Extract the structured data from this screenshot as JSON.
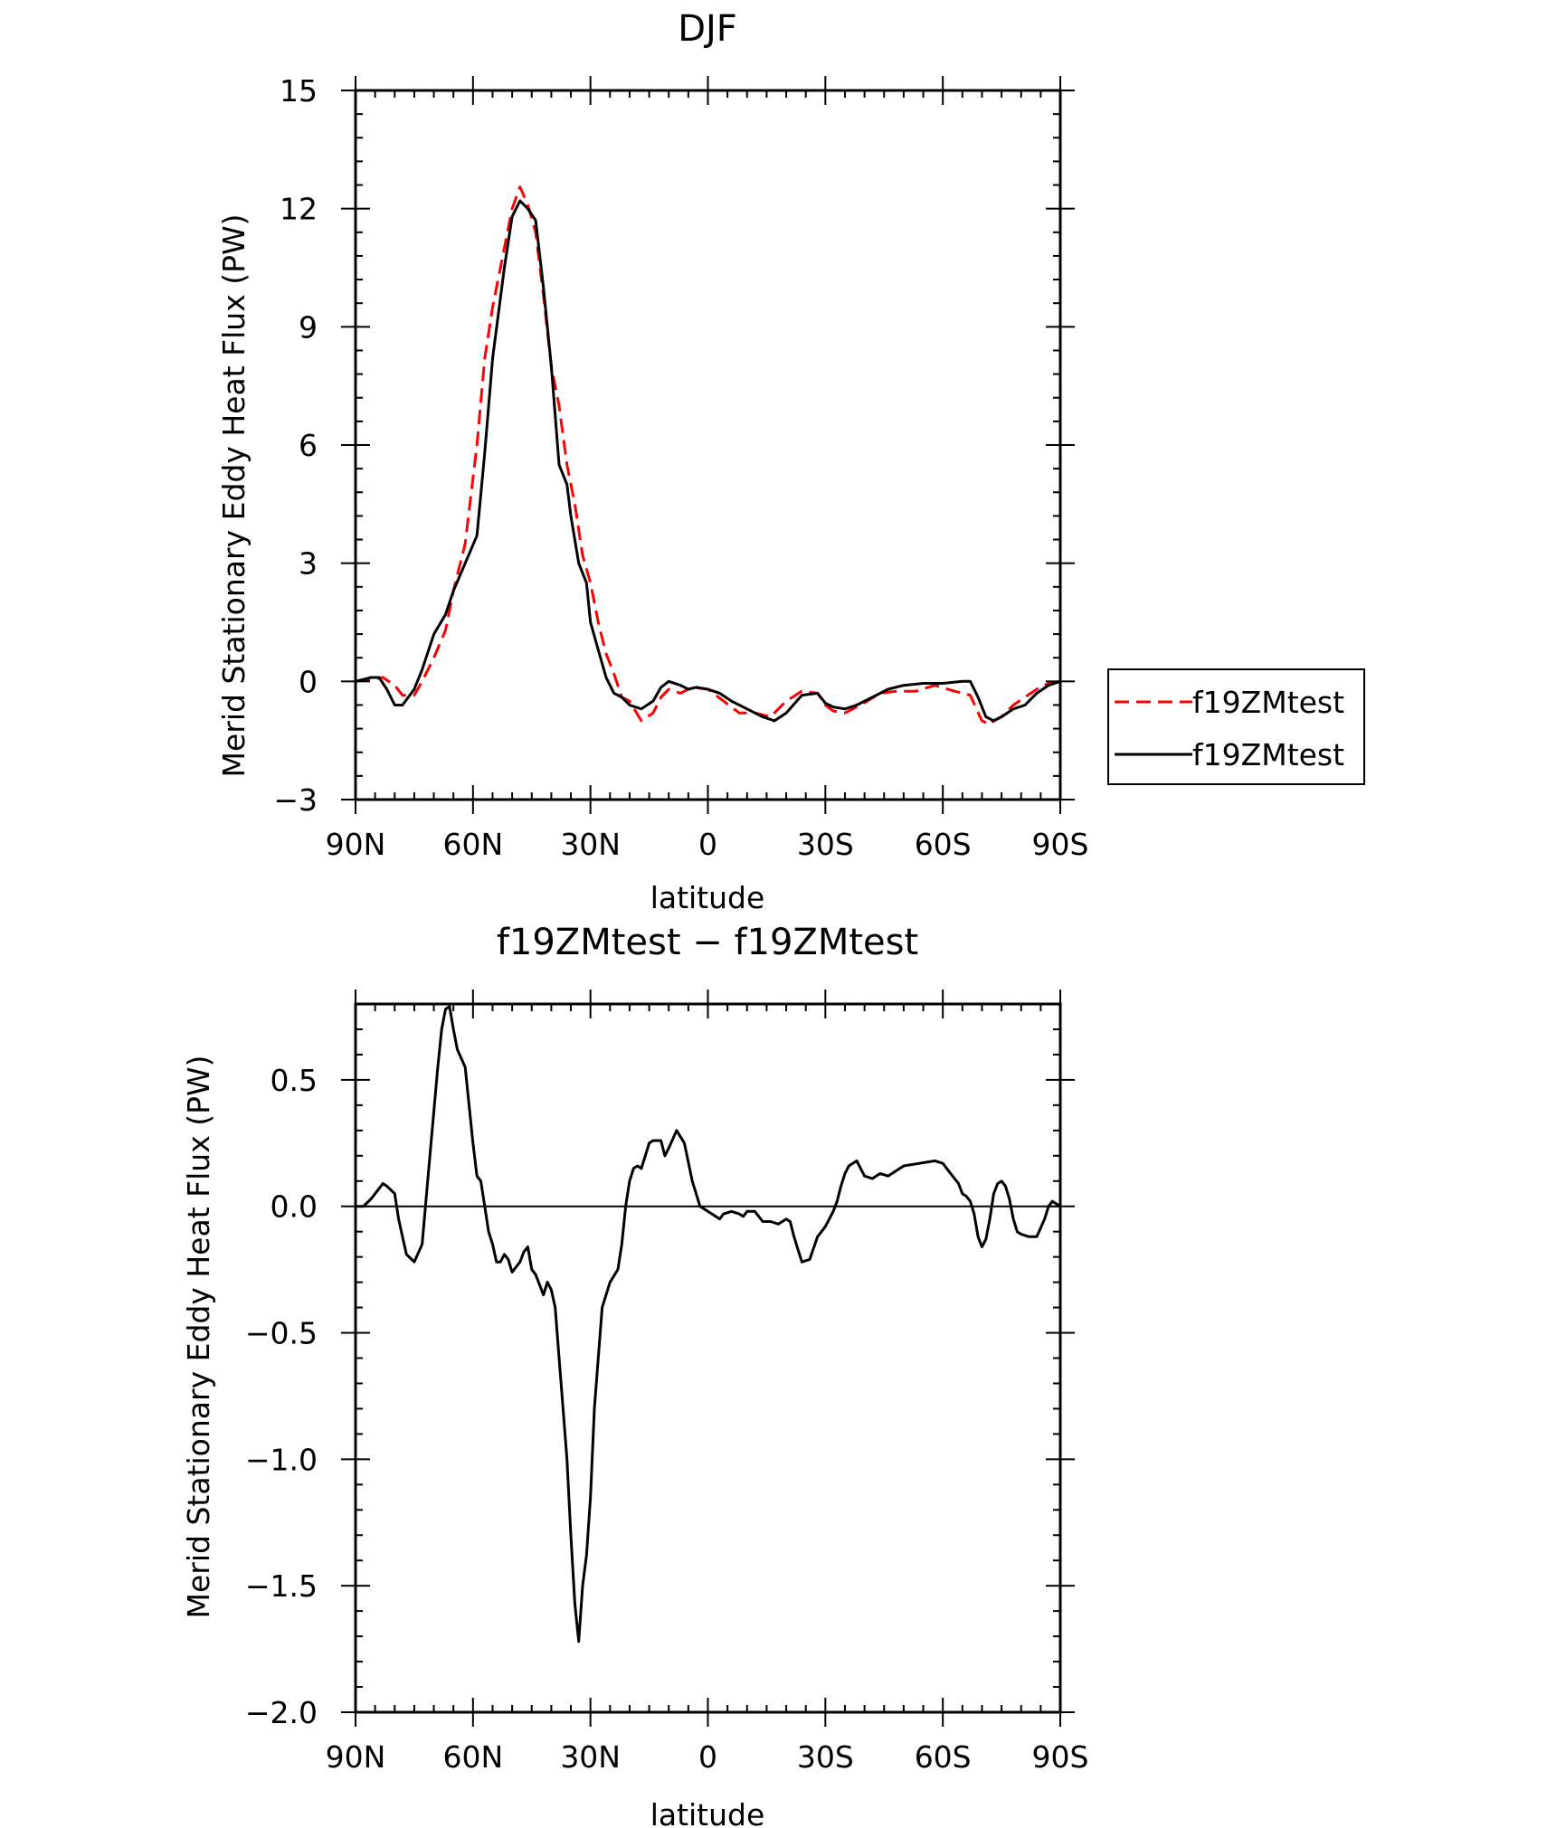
{
  "chart_data": [
    {
      "type": "line",
      "title": "DJF",
      "xlabel": "latitude",
      "ylabel": "Merid Stationary Eddy Heat Flux (PW)",
      "xlim": [
        90,
        -90
      ],
      "ylim": [
        -3,
        15
      ],
      "x_ticks": [
        90,
        60,
        30,
        0,
        -30,
        -60,
        -90
      ],
      "x_tick_labels": [
        "90N",
        "60N",
        "30N",
        "0",
        "30S",
        "60S",
        "90S"
      ],
      "y_ticks": [
        -3,
        0,
        3,
        6,
        9,
        12,
        15
      ],
      "y_tick_labels": [
        "−3",
        "0",
        "3",
        "6",
        "9",
        "12",
        "15"
      ],
      "legend": "right",
      "series": [
        {
          "name": "f19ZMtest",
          "color": "#ff0000",
          "dash": "dashed",
          "x": [
            90,
            86,
            83,
            80,
            78,
            75,
            73,
            70,
            67,
            65,
            62,
            59,
            57,
            55,
            52,
            50,
            48,
            46,
            44,
            42,
            40,
            38,
            36,
            34,
            32,
            30,
            28,
            26,
            24,
            22,
            20,
            17,
            14,
            12,
            10,
            7,
            4,
            0,
            -4,
            -8,
            -12,
            -16,
            -20,
            -24,
            -28,
            -30,
            -32,
            -35,
            -39,
            -44,
            -48,
            -53,
            -58,
            -63,
            -67,
            -70,
            -72,
            -73,
            -75,
            -78,
            -81,
            -84,
            -87,
            -90
          ],
          "y": [
            0,
            0.05,
            0.1,
            -0.1,
            -0.35,
            -0.35,
            0,
            0.6,
            1.3,
            2.3,
            3.5,
            6.0,
            8.2,
            9.5,
            11.0,
            12.0,
            12.55,
            12.1,
            11.4,
            9.8,
            8.0,
            7.0,
            5.5,
            4.5,
            3.2,
            2.5,
            1.5,
            0.7,
            0.2,
            -0.4,
            -0.5,
            -1.0,
            -0.8,
            -0.4,
            -0.2,
            -0.3,
            -0.15,
            -0.2,
            -0.5,
            -0.8,
            -0.8,
            -0.9,
            -0.5,
            -0.25,
            -0.3,
            -0.6,
            -0.75,
            -0.8,
            -0.6,
            -0.3,
            -0.25,
            -0.25,
            -0.1,
            -0.25,
            -0.35,
            -1.0,
            -1.1,
            -1.0,
            -0.9,
            -0.6,
            -0.4,
            -0.2,
            -0.05,
            0
          ]
        },
        {
          "name": "f19ZMtest",
          "color": "#000000",
          "dash": "solid",
          "x": [
            90,
            86,
            84,
            82,
            80,
            78,
            75,
            73,
            70,
            67,
            65,
            62,
            59,
            57,
            55,
            52,
            50,
            48,
            46,
            44,
            42,
            40,
            38,
            36,
            35,
            33,
            31,
            30,
            28,
            26,
            24,
            22,
            20,
            17,
            14,
            12,
            10,
            7,
            5,
            3,
            0,
            -3,
            -6,
            -10,
            -14,
            -17,
            -20,
            -24,
            -28,
            -30,
            -32,
            -35,
            -38,
            -42,
            -46,
            -50,
            -55,
            -60,
            -65,
            -67,
            -69,
            -71,
            -73,
            -75,
            -78,
            -81,
            -84,
            -87,
            -90
          ],
          "y": [
            0,
            0.1,
            0.1,
            -0.2,
            -0.6,
            -0.6,
            -0.2,
            0.3,
            1.2,
            1.7,
            2.3,
            3.0,
            3.7,
            5.8,
            8.2,
            10.5,
            11.8,
            12.2,
            12.0,
            11.7,
            10.0,
            8.0,
            5.5,
            5.0,
            4.2,
            3.0,
            2.5,
            1.5,
            0.8,
            0.1,
            -0.3,
            -0.4,
            -0.6,
            -0.7,
            -0.5,
            -0.15,
            0,
            -0.1,
            -0.2,
            -0.15,
            -0.2,
            -0.3,
            -0.5,
            -0.7,
            -0.9,
            -1.0,
            -0.8,
            -0.35,
            -0.3,
            -0.55,
            -0.65,
            -0.7,
            -0.6,
            -0.4,
            -0.2,
            -0.1,
            -0.05,
            -0.05,
            0,
            0,
            -0.4,
            -0.9,
            -1.0,
            -0.9,
            -0.7,
            -0.6,
            -0.3,
            -0.1,
            0
          ]
        }
      ]
    },
    {
      "type": "line",
      "title": "f19ZMtest − f19ZMtest",
      "xlabel": "latitude",
      "ylabel": "Merid Stationary Eddy Heat Flux (PW)",
      "xlim": [
        90,
        -90
      ],
      "ylim": [
        -2.0,
        0.8
      ],
      "x_ticks": [
        90,
        60,
        30,
        0,
        -30,
        -60,
        -90
      ],
      "x_tick_labels": [
        "90N",
        "60N",
        "30N",
        "0",
        "30S",
        "60S",
        "90S"
      ],
      "y_ticks": [
        -2.0,
        -1.5,
        -1.0,
        -0.5,
        0.0,
        0.5
      ],
      "y_tick_labels": [
        "−2.0",
        "−1.5",
        "−1.0",
        "−0.5",
        "0.0",
        "0.5"
      ],
      "series": [
        {
          "color": "#000000",
          "dash": "solid",
          "x": [
            90,
            88,
            86,
            84,
            83,
            82,
            80,
            79,
            78,
            77,
            75,
            73,
            71,
            69,
            68,
            67,
            66,
            65,
            64,
            62,
            61,
            60,
            59,
            58,
            57,
            56,
            55,
            54,
            53,
            52,
            51,
            50,
            48,
            47,
            46,
            45,
            44,
            42,
            41,
            40,
            39,
            38,
            37,
            36,
            35,
            34,
            33,
            32,
            31,
            30,
            29,
            28,
            27,
            25,
            23,
            22,
            21,
            20,
            19,
            18,
            17,
            16,
            15,
            14,
            12,
            11,
            10,
            8,
            6,
            4,
            2,
            0,
            -2,
            -3,
            -4,
            -6,
            -8,
            -9,
            -10,
            -12,
            -14,
            -16,
            -18,
            -20,
            -21,
            -22,
            -23,
            -24,
            -26,
            -28,
            -30,
            -31,
            -32,
            -33,
            -34,
            -35,
            -36,
            -38,
            -40,
            -42,
            -44,
            -46,
            -50,
            -54,
            -58,
            -60,
            -62,
            -64,
            -65,
            -66,
            -67,
            -68,
            -69,
            -70,
            -71,
            -72,
            -73,
            -74,
            -75,
            -76,
            -77,
            -78,
            -79,
            -80,
            -82,
            -84,
            -86,
            -87,
            -88,
            -90
          ],
          "y": [
            0,
            0,
            0.03,
            0.07,
            0.09,
            0.08,
            0.05,
            -0.05,
            -0.12,
            -0.19,
            -0.22,
            -0.15,
            0.2,
            0.55,
            0.7,
            0.78,
            0.79,
            0.7,
            0.62,
            0.55,
            0.4,
            0.25,
            0.12,
            0.1,
            0.0,
            -0.1,
            -0.15,
            -0.22,
            -0.22,
            -0.19,
            -0.21,
            -0.26,
            -0.22,
            -0.18,
            -0.16,
            -0.25,
            -0.27,
            -0.35,
            -0.3,
            -0.33,
            -0.4,
            -0.6,
            -0.8,
            -1.0,
            -1.3,
            -1.57,
            -1.72,
            -1.5,
            -1.38,
            -1.15,
            -0.8,
            -0.6,
            -0.4,
            -0.3,
            -0.25,
            -0.15,
            0.0,
            0.1,
            0.15,
            0.16,
            0.15,
            0.2,
            0.25,
            0.26,
            0.26,
            0.2,
            0.23,
            0.3,
            0.25,
            0.1,
            0.0,
            -0.02,
            -0.04,
            -0.05,
            -0.03,
            -0.02,
            -0.03,
            -0.04,
            -0.02,
            -0.02,
            -0.06,
            -0.06,
            -0.07,
            -0.05,
            -0.06,
            -0.12,
            -0.17,
            -0.22,
            -0.21,
            -0.12,
            -0.08,
            -0.05,
            -0.02,
            0.02,
            0.08,
            0.13,
            0.16,
            0.18,
            0.12,
            0.11,
            0.13,
            0.12,
            0.16,
            0.17,
            0.18,
            0.17,
            0.13,
            0.09,
            0.05,
            0.04,
            0.02,
            -0.03,
            -0.12,
            -0.16,
            -0.13,
            -0.05,
            0.05,
            0.09,
            0.1,
            0.08,
            0.03,
            -0.05,
            -0.1,
            -0.11,
            -0.12,
            -0.12,
            -0.05,
            0.0,
            0.02,
            0.0
          ]
        }
      ]
    }
  ]
}
